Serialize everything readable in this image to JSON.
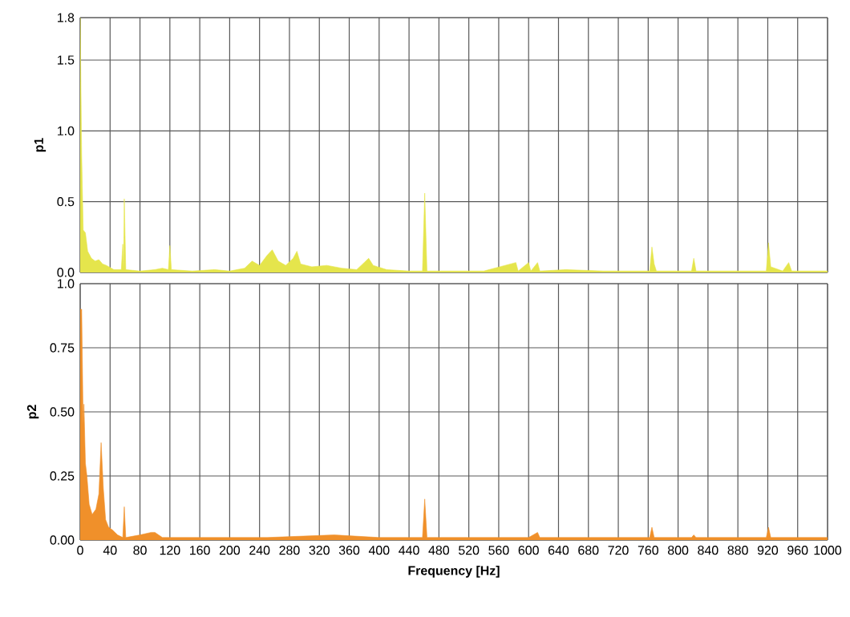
{
  "chart_data": [
    {
      "type": "area",
      "ylabel": "p1",
      "xlim": [
        0,
        1000
      ],
      "ylim": [
        0,
        1.8
      ],
      "xticks": [
        0,
        40,
        80,
        120,
        160,
        200,
        240,
        280,
        320,
        360,
        400,
        440,
        480,
        520,
        560,
        600,
        640,
        680,
        720,
        760,
        800,
        840,
        880,
        920,
        960,
        1000
      ],
      "yticks": [
        {
          "value": 0,
          "label": "0.0"
        },
        0.5,
        {
          "value": 1,
          "label": "1.0"
        },
        1.5,
        1.8
      ],
      "tick_labels": "y",
      "grid": true,
      "series": [
        {
          "color": "#e5e54c",
          "x": [
            0,
            2,
            4,
            7,
            10,
            15,
            20,
            25,
            30,
            35,
            45,
            55,
            57,
            58,
            59,
            61,
            80,
            100,
            110,
            118,
            120,
            122,
            150,
            180,
            200,
            220,
            230,
            240,
            250,
            257,
            265,
            275,
            285,
            290,
            295,
            310,
            330,
            350,
            370,
            380,
            386,
            392,
            410,
            440,
            458,
            461,
            464,
            500,
            540,
            583,
            586,
            600,
            603,
            612,
            615,
            650,
            700,
            740,
            762,
            765,
            768,
            771,
            818,
            821,
            824,
            870,
            918,
            921,
            924,
            940,
            948,
            952,
            1000
          ],
          "values": [
            1.8,
            0.83,
            0.3,
            0.28,
            0.15,
            0.1,
            0.08,
            0.09,
            0.06,
            0.05,
            0.02,
            0.02,
            0.2,
            0.02,
            0.52,
            0.02,
            0.01,
            0.02,
            0.03,
            0.02,
            0.19,
            0.02,
            0.01,
            0.02,
            0.01,
            0.03,
            0.08,
            0.05,
            0.12,
            0.16,
            0.08,
            0.05,
            0.1,
            0.15,
            0.06,
            0.04,
            0.05,
            0.03,
            0.02,
            0.07,
            0.1,
            0.05,
            0.02,
            0.01,
            0.01,
            0.56,
            0.01,
            0.01,
            0.01,
            0.07,
            0.01,
            0.07,
            0.01,
            0.07,
            0.01,
            0.02,
            0.01,
            0.01,
            0.01,
            0.18,
            0.06,
            0.01,
            0.01,
            0.1,
            0.01,
            0.01,
            0.01,
            0.21,
            0.04,
            0.01,
            0.07,
            0.01,
            0.01
          ]
        }
      ]
    },
    {
      "type": "area",
      "xlabel": "Frequency [Hz]",
      "ylabel": "p2",
      "xlim": [
        0,
        1000
      ],
      "ylim": [
        0,
        1.0
      ],
      "xticks": [
        0,
        40,
        80,
        120,
        160,
        200,
        240,
        280,
        320,
        360,
        400,
        440,
        480,
        520,
        560,
        600,
        640,
        680,
        720,
        760,
        800,
        840,
        880,
        920,
        960,
        1000
      ],
      "yticks": [
        {
          "value": 0,
          "label": "0.00"
        },
        0.25,
        {
          "value": 0.5,
          "label": "0.50"
        },
        0.75,
        {
          "value": 1,
          "label": "1.0"
        }
      ],
      "grid": true,
      "series": [
        {
          "color": "#f0902a",
          "x": [
            0,
            2,
            4,
            5,
            7,
            9,
            12,
            16,
            21,
            25,
            28,
            31,
            34,
            38,
            43,
            50,
            57,
            59,
            61,
            80,
            95,
            100,
            110,
            150,
            250,
            340,
            400,
            458,
            461,
            464,
            600,
            612,
            615,
            762,
            765,
            768,
            818,
            821,
            824,
            918,
            921,
            924,
            1000
          ],
          "values": [
            0.9,
            0.9,
            0.45,
            0.53,
            0.3,
            0.25,
            0.14,
            0.1,
            0.12,
            0.18,
            0.38,
            0.2,
            0.08,
            0.05,
            0.04,
            0.02,
            0.01,
            0.13,
            0.01,
            0.02,
            0.03,
            0.03,
            0.01,
            0.01,
            0.01,
            0.02,
            0.01,
            0.01,
            0.16,
            0.01,
            0.01,
            0.03,
            0.01,
            0.01,
            0.05,
            0.01,
            0.01,
            0.02,
            0.01,
            0.01,
            0.05,
            0.01,
            0.01
          ]
        }
      ]
    }
  ]
}
